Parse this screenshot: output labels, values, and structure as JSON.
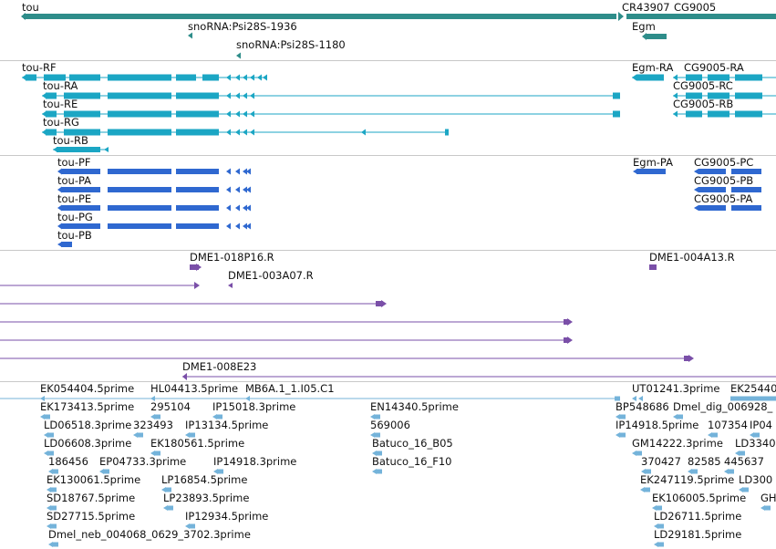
{
  "colors": {
    "gene": "#2e8d8a",
    "transcript": "#1ba6c4",
    "protein": "#2f68d0",
    "clone": "#7a4fa8",
    "est": "#74b3da",
    "divider": "#c8c8c8"
  },
  "tracks": {
    "genes": {
      "labels": [
        "tou",
        "snoRNA:Psi28S-1936",
        "snoRNA:Psi28S-1180",
        "CR43907",
        "CG9005",
        "Egm"
      ]
    },
    "transcripts": {
      "labels": [
        "tou-RF",
        "tou-RA",
        "tou-RE",
        "tou-RG",
        "tou-RB",
        "Egm-RA",
        "CG9005-RA",
        "CG9005-RC",
        "CG9005-RB"
      ]
    },
    "proteins": {
      "labels": [
        "tou-PF",
        "tou-PA",
        "tou-PE",
        "tou-PG",
        "tou-PB",
        "Egm-PA",
        "CG9005-PC",
        "CG9005-PB",
        "CG9005-PA"
      ]
    },
    "clones": {
      "labels": [
        "DME1-018P16.R",
        "DME1-003A07.R",
        "DME1-004A13.R",
        "DME1-008E23"
      ]
    },
    "ests": {
      "labels": [
        "EK054404.5prime",
        "HL04413.5prime",
        "MB6A.1_1.I05.C1",
        "UT01241.3prime",
        "EK25440",
        "EK173413.5prime",
        "295104",
        "IP15018.3prime",
        "EN14340.5prime",
        "BP548686",
        "Dmel_dig_006928_",
        "LD06518.3prime",
        "323493",
        "IP13134.5prime",
        "569006",
        "IP14918.5prime",
        "107354",
        "IP04",
        "LD06608.3prime",
        "EK180561.5prime",
        "Batuco_16_B05",
        "GM14222.3prime",
        "LD3340",
        "186456",
        "EP04733.3prime",
        "IP14918.3prime",
        "Batuco_16_F10",
        "370427",
        "82585",
        "445637",
        "EK130061.5prime",
        "LP16854.5prime",
        "EK247119.5prime",
        "LD300",
        "SD18767.5prime",
        "LP23893.5prime",
        "EK106005.5prime",
        "GH",
        "SD27715.5prime",
        "IP12934.5prime",
        "LD26711.5prime",
        "Dmel_neb_004068_0629_3702.3prime",
        "LD29181.5prime"
      ]
    }
  }
}
